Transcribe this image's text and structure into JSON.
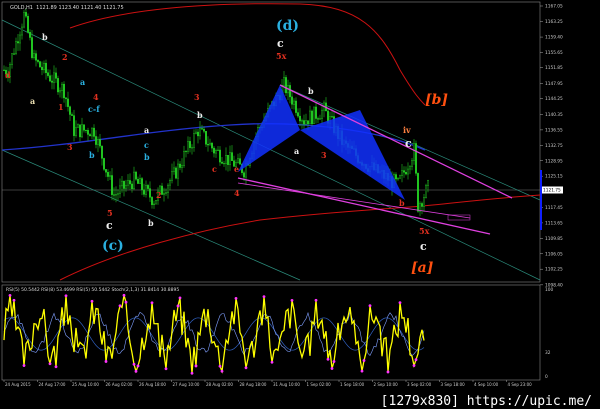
{
  "header": {
    "symbol": "GOLD,H1",
    "ohlc": "1121.89 1123.40 1121.40 1121.75"
  },
  "indicator_label": "RSI(5) 50.5442  RSI(8) 53.4699  RSI(5) 50.5442  Stoch(2,1,3) 31.8414 30.8895",
  "watermark": "[1279x830] https://upic.me/",
  "colors": {
    "bull": "#22cc22",
    "bear": "#22cc22",
    "ma": "#2233cc",
    "envelope": "#cc1111",
    "channel": "#e040e0",
    "pattern": "#1030ff",
    "osc": "#ffff00",
    "osc_dots": "#ff33ff",
    "grid_line": "#2a8a7a"
  },
  "chart_data": {
    "type": "candlestick",
    "title": "",
    "x_ticks": [
      "24 Aug 2015",
      "24 Aug 17:00",
      "25 Aug 10:00",
      "26 Aug 02:00",
      "26 Aug 18:00",
      "27 Aug 10:00",
      "28 Aug 02:00",
      "28 Aug 18:00",
      "31 Aug 10:00",
      "1 Sep 02:00",
      "1 Sep 18:00",
      "2 Sep 10:00",
      "3 Sep 02:00",
      "3 Sep 18:00",
      "4 Sep 10:00",
      "4 Sep 23:00"
    ],
    "y_ticks": [
      1167.05,
      1163.25,
      1159.4,
      1155.65,
      1151.85,
      1147.95,
      1144.25,
      1140.35,
      1136.55,
      1132.75,
      1128.95,
      1125.15,
      1117.45,
      1113.65,
      1109.85,
      1106.05,
      1102.25,
      1098.4
    ],
    "current_price": "1121.75",
    "ylim": [
      1096.5,
      1168.5
    ],
    "close_path": {
      "x": [
        2,
        10,
        15,
        22,
        30,
        35,
        45,
        55,
        65,
        75,
        85,
        97,
        105,
        120,
        127,
        140,
        150,
        160,
        170,
        185,
        197,
        205,
        207,
        212
      ],
      "y": [
        1151.3,
        1164.8,
        1153.8,
        1150.1,
        1146.4,
        1136.5,
        1136.5,
        1120.5,
        1124.2,
        1119.3,
        1125.4,
        1136.5,
        1131.6,
        1126.7,
        1136.5,
        1147.6,
        1139.0,
        1141.4,
        1132.8,
        1126.7,
        1123.0,
        1131.6,
        1118.0,
        1122.2
      ]
    },
    "oscillator": {
      "y_ticks": [
        "100",
        "32",
        "0"
      ],
      "ylim": [
        0,
        100
      ]
    },
    "wave_labels": [
      "d",
      "b",
      "2",
      "a",
      "1",
      "4",
      "a",
      "c-f",
      "3",
      "b",
      "5",
      "c",
      "(c)",
      "a",
      "c",
      "b",
      "2",
      "b",
      "3",
      "b",
      "c",
      "e",
      "4",
      "(d)",
      "c",
      "5x",
      "a",
      "b",
      "3",
      "[b]",
      "iv",
      "c",
      "5x",
      "c",
      "[a]",
      "b"
    ]
  }
}
